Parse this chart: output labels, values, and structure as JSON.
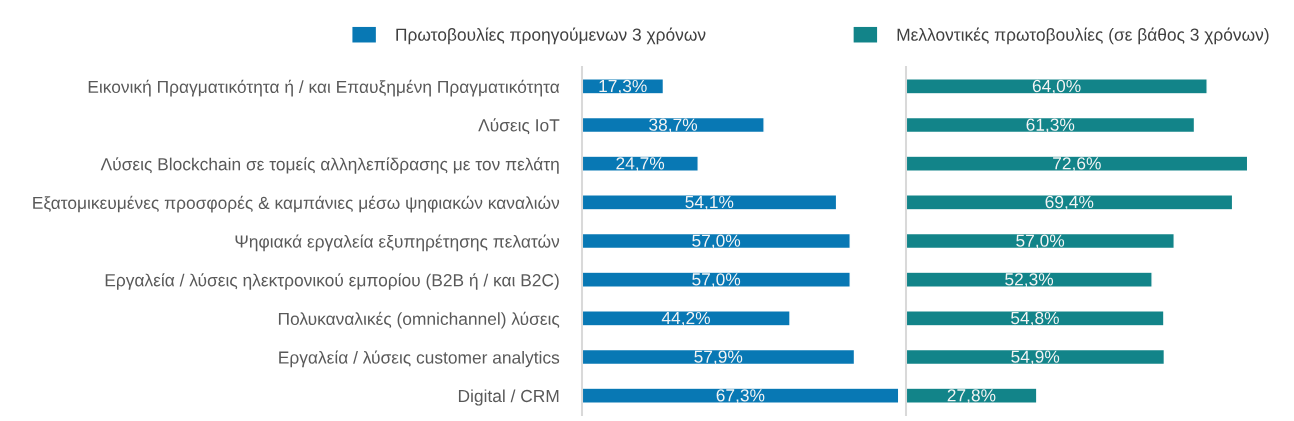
{
  "chart_data": [
    {
      "type": "bar",
      "orientation": "horizontal",
      "tick_labels": "y",
      "legend": "top",
      "categories": [
        "Εικονική Πραγματικότητα ή / και Επαυξημένη Πραγματικότητα",
        "Λύσεις IoT",
        "Λύσεις Blockchain σε τομείς αλληλεπίδρασης με τον πελάτη",
        "Εξατομικευμένες προσφορές & καμπάνιες μέσω ψηφιακών καναλιών",
        "Ψηφιακά εργαλεία εξυπηρέτησης πελατών",
        "Εργαλεία / λύσεις ηλεκτρονικού εμπορίου (B2B ή / και B2C)",
        "Πολυκαναλικές (omnichannel) λύσεις",
        "Εργαλεία / λύσεις customer analytics",
        "Digital / CRM"
      ],
      "series": [
        {
          "name": "Πρωτοβουλίες προηγούμενων 3 χρόνων",
          "color": "#0878b4",
          "values": [
            17.3,
            38.7,
            24.7,
            54.1,
            57.0,
            57.0,
            44.2,
            57.9,
            67.3
          ],
          "value_labels": [
            "17,3%",
            "38,7%",
            "24,7%",
            "54,1%",
            "57,0%",
            "57,0%",
            "44,2%",
            "57,9%",
            "67,3%"
          ]
        }
      ]
    },
    {
      "type": "bar",
      "orientation": "horizontal",
      "tick_labels": false,
      "legend": "top",
      "categories": [
        null,
        null,
        null,
        null,
        null,
        null,
        null,
        null,
        null
      ],
      "series": [
        {
          "name": "Μελλοντικές πρωτοβουλίες (σε βάθος 3 χρόνων)",
          "color": "#128489",
          "values": [
            64.0,
            61.3,
            72.6,
            69.4,
            57.0,
            52.3,
            54.8,
            54.9,
            27.8
          ],
          "value_labels": [
            "64,0%",
            "61,3%",
            "72,6%",
            "69,4%",
            "57,0%",
            "52,3%",
            "54,8%",
            "54,9%",
            "27,8%"
          ]
        }
      ]
    }
  ]
}
